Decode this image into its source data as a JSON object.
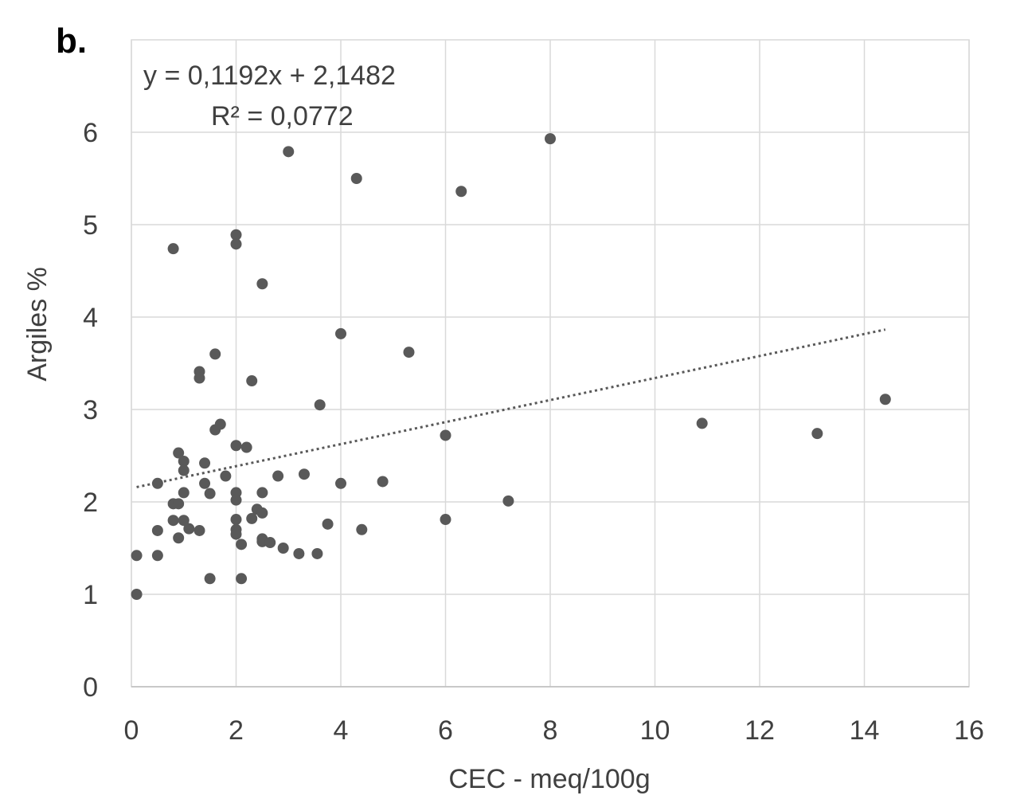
{
  "panel_label": "b.",
  "chart_data": {
    "type": "scatter",
    "xlabel": "CEC - meq/100g",
    "ylabel": "Argiles %",
    "xlim": [
      0,
      16
    ],
    "ylim": [
      0,
      7
    ],
    "x_ticks": [
      "0",
      "2",
      "4",
      "6",
      "8",
      "10",
      "12",
      "14",
      "16"
    ],
    "y_ticks": [
      "0",
      "1",
      "2",
      "3",
      "4",
      "5",
      "6"
    ],
    "grid": true,
    "marker_color": "#595959",
    "grid_color": "#d9d9d9",
    "trendline": {
      "type": "linear",
      "style": "dotted",
      "slope": 0.1192,
      "intercept": 2.1482,
      "x_range": [
        0.1,
        14.4
      ],
      "equation_label": "y = 0,1192x + 2,1482",
      "r2_label": "R² = 0,0772"
    },
    "points": [
      {
        "x": 0.1,
        "y": 1.0
      },
      {
        "x": 0.1,
        "y": 1.42
      },
      {
        "x": 0.5,
        "y": 1.42
      },
      {
        "x": 0.5,
        "y": 1.69
      },
      {
        "x": 0.5,
        "y": 2.2
      },
      {
        "x": 0.8,
        "y": 1.98
      },
      {
        "x": 0.8,
        "y": 1.8
      },
      {
        "x": 0.8,
        "y": 4.74
      },
      {
        "x": 0.9,
        "y": 1.98
      },
      {
        "x": 0.9,
        "y": 1.61
      },
      {
        "x": 0.9,
        "y": 2.53
      },
      {
        "x": 1.0,
        "y": 2.44
      },
      {
        "x": 1.0,
        "y": 2.34
      },
      {
        "x": 1.0,
        "y": 2.1
      },
      {
        "x": 1.0,
        "y": 1.8
      },
      {
        "x": 1.1,
        "y": 1.71
      },
      {
        "x": 1.3,
        "y": 3.41
      },
      {
        "x": 1.3,
        "y": 3.34
      },
      {
        "x": 1.3,
        "y": 1.69
      },
      {
        "x": 1.4,
        "y": 2.42
      },
      {
        "x": 1.4,
        "y": 2.2
      },
      {
        "x": 1.5,
        "y": 2.09
      },
      {
        "x": 1.5,
        "y": 1.17
      },
      {
        "x": 1.6,
        "y": 3.6
      },
      {
        "x": 1.6,
        "y": 2.78
      },
      {
        "x": 1.7,
        "y": 2.84
      },
      {
        "x": 1.8,
        "y": 2.28
      },
      {
        "x": 2.0,
        "y": 4.89
      },
      {
        "x": 2.0,
        "y": 4.79
      },
      {
        "x": 2.0,
        "y": 2.61
      },
      {
        "x": 2.0,
        "y": 2.1
      },
      {
        "x": 2.0,
        "y": 2.02
      },
      {
        "x": 2.0,
        "y": 1.81
      },
      {
        "x": 2.0,
        "y": 1.7
      },
      {
        "x": 2.0,
        "y": 1.65
      },
      {
        "x": 2.1,
        "y": 1.54
      },
      {
        "x": 2.1,
        "y": 1.17
      },
      {
        "x": 2.2,
        "y": 2.59
      },
      {
        "x": 2.3,
        "y": 3.31
      },
      {
        "x": 2.3,
        "y": 1.82
      },
      {
        "x": 2.4,
        "y": 1.92
      },
      {
        "x": 2.5,
        "y": 4.36
      },
      {
        "x": 2.5,
        "y": 2.1
      },
      {
        "x": 2.5,
        "y": 1.88
      },
      {
        "x": 2.5,
        "y": 1.6
      },
      {
        "x": 2.5,
        "y": 1.57
      },
      {
        "x": 2.65,
        "y": 1.56
      },
      {
        "x": 2.8,
        "y": 2.28
      },
      {
        "x": 2.9,
        "y": 1.5
      },
      {
        "x": 3.0,
        "y": 5.79
      },
      {
        "x": 3.2,
        "y": 1.44
      },
      {
        "x": 3.3,
        "y": 2.3
      },
      {
        "x": 3.55,
        "y": 1.44
      },
      {
        "x": 3.6,
        "y": 3.05
      },
      {
        "x": 3.75,
        "y": 1.76
      },
      {
        "x": 4.0,
        "y": 3.82
      },
      {
        "x": 4.0,
        "y": 2.2
      },
      {
        "x": 4.3,
        "y": 5.5
      },
      {
        "x": 4.4,
        "y": 1.7
      },
      {
        "x": 4.8,
        "y": 2.22
      },
      {
        "x": 5.3,
        "y": 3.62
      },
      {
        "x": 6.0,
        "y": 2.72
      },
      {
        "x": 6.0,
        "y": 1.81
      },
      {
        "x": 6.3,
        "y": 5.36
      },
      {
        "x": 7.2,
        "y": 2.01
      },
      {
        "x": 8.0,
        "y": 5.93
      },
      {
        "x": 10.9,
        "y": 2.85
      },
      {
        "x": 13.1,
        "y": 2.74
      },
      {
        "x": 14.4,
        "y": 3.11
      }
    ]
  }
}
